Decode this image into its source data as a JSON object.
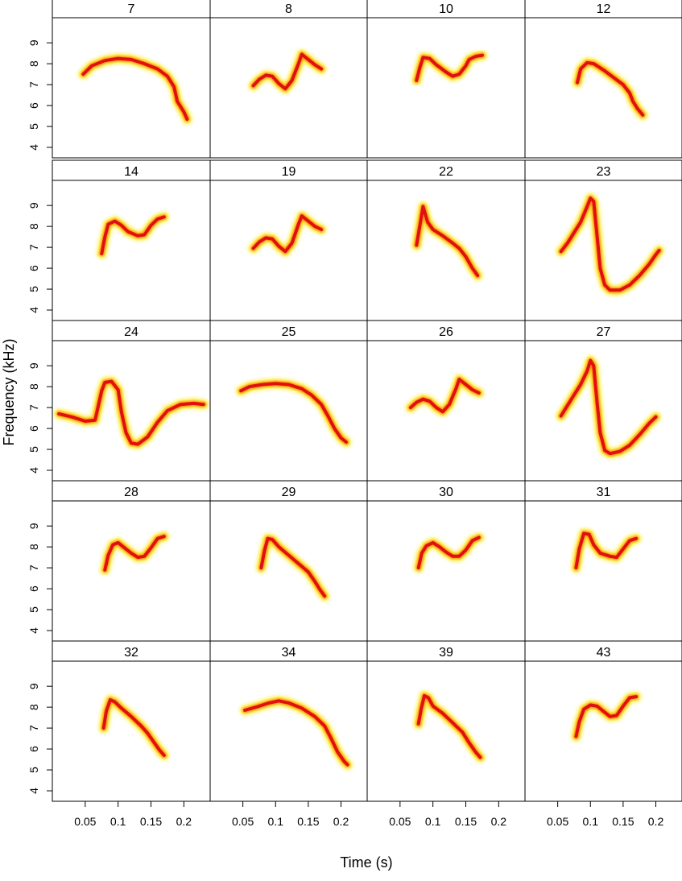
{
  "chart_data": {
    "type": "spectrogram-grid",
    "xlabel": "Time (s)",
    "ylabel": "Frequency (kHz)",
    "xlim": [
      0.0,
      0.24
    ],
    "ylim": [
      3.5,
      10.2
    ],
    "x_ticks": [
      0.05,
      0.1,
      0.15,
      0.2
    ],
    "y_ticks": [
      4,
      5,
      6,
      7,
      8,
      9
    ],
    "grid": false,
    "colors": {
      "core": "#e01010",
      "mid": "#ff8a00",
      "halo": "#ffee33",
      "noise": "#fff4a0"
    },
    "panels": [
      {
        "label": "7",
        "contour": [
          [
            0.047,
            7.5
          ],
          [
            0.06,
            7.9
          ],
          [
            0.08,
            8.15
          ],
          [
            0.1,
            8.25
          ],
          [
            0.12,
            8.2
          ],
          [
            0.14,
            8.0
          ],
          [
            0.16,
            7.75
          ],
          [
            0.175,
            7.4
          ],
          [
            0.185,
            6.9
          ],
          [
            0.19,
            6.2
          ],
          [
            0.2,
            5.7
          ],
          [
            0.205,
            5.35
          ]
        ]
      },
      {
        "label": "8",
        "contour": [
          [
            0.066,
            6.95
          ],
          [
            0.075,
            7.25
          ],
          [
            0.085,
            7.45
          ],
          [
            0.095,
            7.4
          ],
          [
            0.105,
            7.05
          ],
          [
            0.115,
            6.8
          ],
          [
            0.125,
            7.2
          ],
          [
            0.135,
            8.0
          ],
          [
            0.14,
            8.45
          ],
          [
            0.15,
            8.2
          ],
          [
            0.16,
            7.95
          ],
          [
            0.17,
            7.75
          ]
        ]
      },
      {
        "label": "10",
        "contour": [
          [
            0.075,
            7.2
          ],
          [
            0.08,
            7.8
          ],
          [
            0.085,
            8.3
          ],
          [
            0.095,
            8.25
          ],
          [
            0.105,
            7.95
          ],
          [
            0.12,
            7.6
          ],
          [
            0.13,
            7.4
          ],
          [
            0.14,
            7.5
          ],
          [
            0.15,
            7.9
          ],
          [
            0.155,
            8.2
          ],
          [
            0.165,
            8.35
          ],
          [
            0.175,
            8.4
          ]
        ]
      },
      {
        "label": "12",
        "contour": [
          [
            0.08,
            7.1
          ],
          [
            0.085,
            7.75
          ],
          [
            0.095,
            8.05
          ],
          [
            0.105,
            8.0
          ],
          [
            0.12,
            7.7
          ],
          [
            0.135,
            7.35
          ],
          [
            0.15,
            7.0
          ],
          [
            0.16,
            6.6
          ],
          [
            0.165,
            6.2
          ],
          [
            0.172,
            5.85
          ],
          [
            0.18,
            5.55
          ]
        ]
      },
      {
        "label": "14",
        "contour": [
          [
            0.075,
            6.7
          ],
          [
            0.08,
            7.5
          ],
          [
            0.085,
            8.1
          ],
          [
            0.095,
            8.25
          ],
          [
            0.105,
            8.05
          ],
          [
            0.115,
            7.75
          ],
          [
            0.13,
            7.55
          ],
          [
            0.14,
            7.6
          ],
          [
            0.15,
            8.05
          ],
          [
            0.16,
            8.35
          ],
          [
            0.17,
            8.45
          ]
        ]
      },
      {
        "label": "19",
        "contour": [
          [
            0.066,
            6.95
          ],
          [
            0.075,
            7.25
          ],
          [
            0.085,
            7.45
          ],
          [
            0.095,
            7.4
          ],
          [
            0.105,
            7.05
          ],
          [
            0.115,
            6.8
          ],
          [
            0.125,
            7.2
          ],
          [
            0.135,
            8.1
          ],
          [
            0.14,
            8.5
          ],
          [
            0.15,
            8.25
          ],
          [
            0.16,
            8.0
          ],
          [
            0.17,
            7.85
          ]
        ]
      },
      {
        "label": "22",
        "contour": [
          [
            0.075,
            7.1
          ],
          [
            0.08,
            8.0
          ],
          [
            0.085,
            8.95
          ],
          [
            0.092,
            8.2
          ],
          [
            0.1,
            7.85
          ],
          [
            0.115,
            7.55
          ],
          [
            0.13,
            7.2
          ],
          [
            0.14,
            6.95
          ],
          [
            0.15,
            6.55
          ],
          [
            0.16,
            6.0
          ],
          [
            0.168,
            5.65
          ]
        ]
      },
      {
        "label": "23",
        "contour": [
          [
            0.055,
            6.8
          ],
          [
            0.065,
            7.2
          ],
          [
            0.075,
            7.7
          ],
          [
            0.085,
            8.2
          ],
          [
            0.095,
            8.95
          ],
          [
            0.1,
            9.35
          ],
          [
            0.105,
            9.2
          ],
          [
            0.11,
            7.6
          ],
          [
            0.115,
            6.0
          ],
          [
            0.122,
            5.2
          ],
          [
            0.13,
            4.95
          ],
          [
            0.145,
            4.95
          ],
          [
            0.16,
            5.2
          ],
          [
            0.175,
            5.65
          ],
          [
            0.19,
            6.2
          ],
          [
            0.2,
            6.65
          ],
          [
            0.205,
            6.85
          ]
        ]
      },
      {
        "label": "24",
        "contour": [
          [
            0.01,
            6.7
          ],
          [
            0.03,
            6.55
          ],
          [
            0.05,
            6.35
          ],
          [
            0.065,
            6.4
          ],
          [
            0.075,
            7.8
          ],
          [
            0.08,
            8.2
          ],
          [
            0.09,
            8.25
          ],
          [
            0.1,
            7.85
          ],
          [
            0.105,
            6.8
          ],
          [
            0.112,
            5.8
          ],
          [
            0.12,
            5.3
          ],
          [
            0.13,
            5.25
          ],
          [
            0.145,
            5.6
          ],
          [
            0.16,
            6.3
          ],
          [
            0.175,
            6.85
          ],
          [
            0.195,
            7.15
          ],
          [
            0.215,
            7.2
          ],
          [
            0.23,
            7.15
          ]
        ]
      },
      {
        "label": "25",
        "contour": [
          [
            0.047,
            7.8
          ],
          [
            0.06,
            8.0
          ],
          [
            0.08,
            8.1
          ],
          [
            0.1,
            8.15
          ],
          [
            0.12,
            8.1
          ],
          [
            0.14,
            7.9
          ],
          [
            0.155,
            7.6
          ],
          [
            0.17,
            7.15
          ],
          [
            0.18,
            6.6
          ],
          [
            0.19,
            6.0
          ],
          [
            0.2,
            5.55
          ],
          [
            0.208,
            5.35
          ]
        ]
      },
      {
        "label": "26",
        "contour": [
          [
            0.066,
            7.0
          ],
          [
            0.075,
            7.25
          ],
          [
            0.085,
            7.4
          ],
          [
            0.095,
            7.3
          ],
          [
            0.105,
            7.0
          ],
          [
            0.115,
            6.8
          ],
          [
            0.125,
            7.15
          ],
          [
            0.135,
            7.9
          ],
          [
            0.14,
            8.35
          ],
          [
            0.15,
            8.1
          ],
          [
            0.16,
            7.85
          ],
          [
            0.17,
            7.7
          ]
        ]
      },
      {
        "label": "27",
        "contour": [
          [
            0.055,
            6.6
          ],
          [
            0.065,
            7.1
          ],
          [
            0.075,
            7.6
          ],
          [
            0.085,
            8.1
          ],
          [
            0.095,
            8.75
          ],
          [
            0.1,
            9.25
          ],
          [
            0.105,
            9.0
          ],
          [
            0.11,
            7.3
          ],
          [
            0.115,
            5.8
          ],
          [
            0.122,
            4.95
          ],
          [
            0.13,
            4.8
          ],
          [
            0.145,
            4.9
          ],
          [
            0.16,
            5.2
          ],
          [
            0.175,
            5.7
          ],
          [
            0.19,
            6.25
          ],
          [
            0.2,
            6.55
          ]
        ]
      },
      {
        "label": "28",
        "contour": [
          [
            0.08,
            6.9
          ],
          [
            0.085,
            7.6
          ],
          [
            0.092,
            8.1
          ],
          [
            0.1,
            8.2
          ],
          [
            0.11,
            7.95
          ],
          [
            0.12,
            7.7
          ],
          [
            0.13,
            7.5
          ],
          [
            0.14,
            7.55
          ],
          [
            0.15,
            7.95
          ],
          [
            0.16,
            8.4
          ],
          [
            0.17,
            8.5
          ]
        ]
      },
      {
        "label": "29",
        "contour": [
          [
            0.078,
            7.0
          ],
          [
            0.083,
            7.8
          ],
          [
            0.088,
            8.4
          ],
          [
            0.095,
            8.35
          ],
          [
            0.105,
            8.0
          ],
          [
            0.12,
            7.6
          ],
          [
            0.135,
            7.2
          ],
          [
            0.15,
            6.8
          ],
          [
            0.16,
            6.35
          ],
          [
            0.168,
            5.95
          ],
          [
            0.175,
            5.65
          ]
        ]
      },
      {
        "label": "30",
        "contour": [
          [
            0.078,
            7.0
          ],
          [
            0.083,
            7.7
          ],
          [
            0.09,
            8.05
          ],
          [
            0.1,
            8.2
          ],
          [
            0.11,
            8.0
          ],
          [
            0.12,
            7.75
          ],
          [
            0.13,
            7.55
          ],
          [
            0.14,
            7.55
          ],
          [
            0.15,
            7.85
          ],
          [
            0.16,
            8.3
          ],
          [
            0.17,
            8.45
          ]
        ]
      },
      {
        "label": "31",
        "contour": [
          [
            0.078,
            7.0
          ],
          [
            0.083,
            7.9
          ],
          [
            0.09,
            8.65
          ],
          [
            0.098,
            8.6
          ],
          [
            0.105,
            8.1
          ],
          [
            0.115,
            7.7
          ],
          [
            0.13,
            7.55
          ],
          [
            0.14,
            7.5
          ],
          [
            0.15,
            7.9
          ],
          [
            0.16,
            8.3
          ],
          [
            0.17,
            8.4
          ]
        ]
      },
      {
        "label": "32",
        "contour": [
          [
            0.078,
            7.0
          ],
          [
            0.082,
            7.8
          ],
          [
            0.088,
            8.35
          ],
          [
            0.095,
            8.25
          ],
          [
            0.105,
            7.95
          ],
          [
            0.12,
            7.55
          ],
          [
            0.135,
            7.1
          ],
          [
            0.145,
            6.75
          ],
          [
            0.155,
            6.3
          ],
          [
            0.163,
            5.95
          ],
          [
            0.17,
            5.7
          ]
        ]
      },
      {
        "label": "34",
        "contour": [
          [
            0.053,
            7.85
          ],
          [
            0.07,
            8.0
          ],
          [
            0.09,
            8.2
          ],
          [
            0.105,
            8.3
          ],
          [
            0.12,
            8.2
          ],
          [
            0.14,
            7.95
          ],
          [
            0.16,
            7.55
          ],
          [
            0.175,
            7.1
          ],
          [
            0.185,
            6.5
          ],
          [
            0.195,
            5.85
          ],
          [
            0.205,
            5.4
          ],
          [
            0.21,
            5.25
          ]
        ]
      },
      {
        "label": "39",
        "contour": [
          [
            0.078,
            7.2
          ],
          [
            0.082,
            7.9
          ],
          [
            0.087,
            8.55
          ],
          [
            0.093,
            8.45
          ],
          [
            0.1,
            8.05
          ],
          [
            0.115,
            7.7
          ],
          [
            0.13,
            7.25
          ],
          [
            0.145,
            6.8
          ],
          [
            0.155,
            6.3
          ],
          [
            0.165,
            5.85
          ],
          [
            0.172,
            5.6
          ]
        ]
      },
      {
        "label": "43",
        "contour": [
          [
            0.078,
            6.6
          ],
          [
            0.083,
            7.3
          ],
          [
            0.09,
            7.9
          ],
          [
            0.1,
            8.1
          ],
          [
            0.11,
            8.05
          ],
          [
            0.12,
            7.8
          ],
          [
            0.13,
            7.55
          ],
          [
            0.14,
            7.6
          ],
          [
            0.15,
            8.05
          ],
          [
            0.16,
            8.45
          ],
          [
            0.17,
            8.5
          ]
        ]
      }
    ]
  }
}
